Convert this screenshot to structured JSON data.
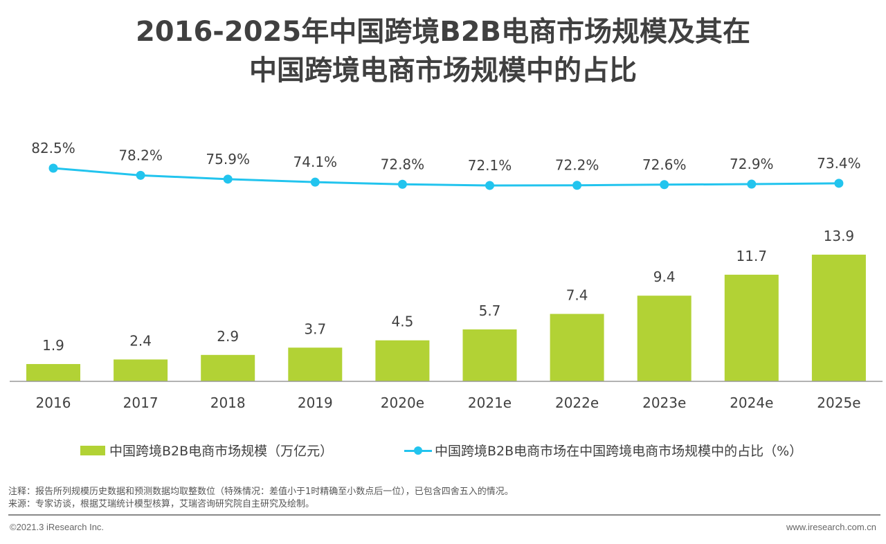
{
  "chart_data": {
    "type": "bar+line",
    "title": "2016-2025年中国跨境B2B电商市场规模及其在中国跨境电商市场规模中的占比",
    "title_lines": [
      "2016-2025年中国跨境B2B电商市场规模及其在",
      "中国跨境电商市场规模中的占比"
    ],
    "categories": [
      "2016",
      "2017",
      "2018",
      "2019",
      "2020e",
      "2021e",
      "2022e",
      "2023e",
      "2024e",
      "2025e"
    ],
    "series": [
      {
        "name": "中国跨境B2B电商市场规模（万亿元）",
        "type": "bar",
        "color": "#b2d235",
        "values": [
          1.9,
          2.4,
          2.9,
          3.7,
          4.5,
          5.7,
          7.4,
          9.4,
          11.7,
          13.9
        ],
        "labels": [
          "1.9",
          "2.4",
          "2.9",
          "3.7",
          "4.5",
          "5.7",
          "7.4",
          "9.4",
          "11.7",
          "13.9"
        ]
      },
      {
        "name": "中国跨境B2B电商市场在中国跨境电商市场规模中的占比（%）",
        "type": "line",
        "color": "#22c4ee",
        "values": [
          82.5,
          78.2,
          75.9,
          74.1,
          72.8,
          72.1,
          72.2,
          72.6,
          72.9,
          73.4
        ],
        "labels": [
          "82.5%",
          "78.2%",
          "75.9%",
          "74.1%",
          "72.8%",
          "72.1%",
          "72.2%",
          "72.6%",
          "72.9%",
          "73.4%"
        ]
      }
    ],
    "legend_position": "bottom",
    "grid": false
  },
  "notes": {
    "note": "注释：报告所列规模历史数据和预测数据均取整数位（特殊情况：差值小于1时精确至小数点后一位），已包含四舍五入的情况。",
    "source": "来源：专家访谈，根据艾瑞统计模型核算，艾瑞咨询研究院自主研究及绘制。"
  },
  "footer": {
    "copyright": "©2021.3 iResearch Inc.",
    "website": "www.iresearch.com.cn"
  }
}
